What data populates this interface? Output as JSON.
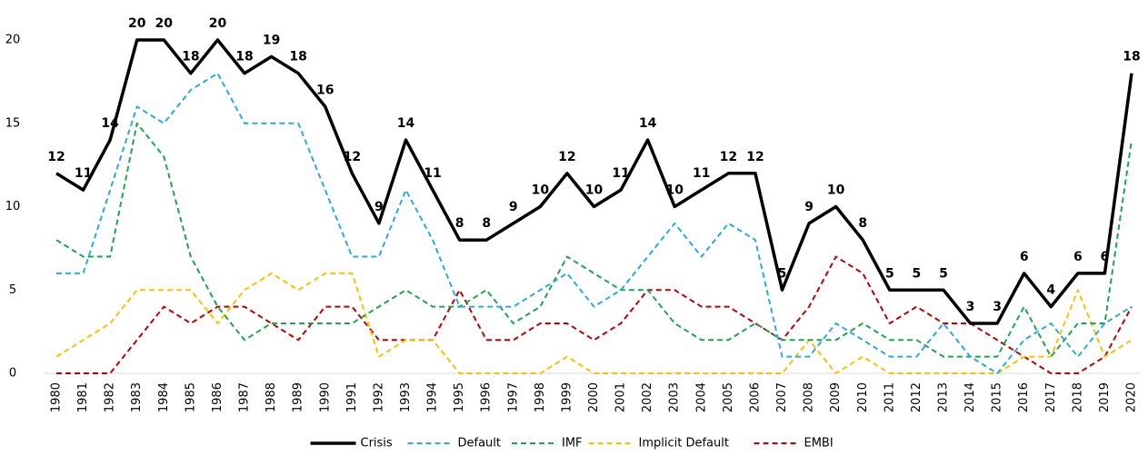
{
  "chart_data": {
    "type": "line",
    "categories": [
      "1980",
      "1981",
      "1982",
      "1983",
      "1984",
      "1985",
      "1986",
      "1987",
      "1988",
      "1989",
      "1990",
      "1991",
      "1992",
      "1993",
      "1994",
      "1995",
      "1996",
      "1997",
      "1998",
      "1999",
      "2000",
      "2001",
      "2002",
      "2003",
      "2004",
      "2005",
      "2006",
      "2007",
      "2008",
      "2009",
      "2010",
      "2011",
      "2012",
      "2013",
      "2014",
      "2015",
      "2016",
      "2017",
      "2018",
      "2019",
      "2020"
    ],
    "series": [
      {
        "name": "Crisis",
        "color": "#000000",
        "dashed": false,
        "data_labels": true,
        "values": [
          12,
          11,
          14,
          20,
          20,
          18,
          20,
          18,
          19,
          18,
          16,
          12,
          9,
          14,
          11,
          8,
          8,
          9,
          10,
          12,
          10,
          11,
          14,
          10,
          11,
          12,
          12,
          5,
          9,
          10,
          8,
          5,
          5,
          5,
          3,
          3,
          6,
          4,
          6,
          6,
          18
        ]
      },
      {
        "name": "Default",
        "color": "#29abe2",
        "dashed": true,
        "values": [
          6,
          6,
          11,
          16,
          15,
          17,
          18,
          15,
          15,
          15,
          11,
          7,
          7,
          11,
          8,
          4,
          4,
          4,
          5,
          6,
          4,
          5,
          7,
          9,
          7,
          9,
          8,
          1,
          1,
          3,
          2,
          1,
          1,
          3,
          1,
          0,
          2,
          3,
          1,
          3,
          4
        ]
      },
      {
        "name": "IMF",
        "color": "#1aa84a",
        "dashed": true,
        "values": [
          8,
          7,
          7,
          15,
          13,
          7,
          4,
          2,
          3,
          3,
          3,
          3,
          4,
          5,
          4,
          4,
          5,
          3,
          4,
          7,
          6,
          5,
          5,
          3,
          2,
          2,
          3,
          2,
          2,
          2,
          3,
          2,
          2,
          1,
          1,
          1,
          4,
          1,
          3,
          3,
          14
        ]
      },
      {
        "name": "Implicit Default",
        "color": "#ffc000",
        "dashed": true,
        "values": [
          1,
          2,
          3,
          5,
          5,
          5,
          3,
          5,
          6,
          5,
          6,
          6,
          1,
          2,
          2,
          0,
          0,
          0,
          0,
          1,
          0,
          0,
          0,
          0,
          0,
          0,
          0,
          0,
          2,
          0,
          1,
          0,
          0,
          0,
          0,
          0,
          1,
          1,
          5,
          1,
          2
        ]
      },
      {
        "name": "EMBI",
        "color": "#c00000",
        "dashed": true,
        "values": [
          0,
          0,
          0,
          2,
          4,
          3,
          4,
          4,
          3,
          2,
          4,
          4,
          2,
          2,
          2,
          5,
          2,
          2,
          3,
          3,
          2,
          3,
          5,
          5,
          4,
          4,
          3,
          2,
          4,
          7,
          6,
          3,
          4,
          3,
          3,
          2,
          1,
          0,
          0,
          1,
          4
        ]
      }
    ],
    "ylim": [
      0,
      20
    ],
    "yticks": [
      0,
      5,
      10,
      15,
      20
    ],
    "grid": false,
    "legend": "bottom"
  }
}
